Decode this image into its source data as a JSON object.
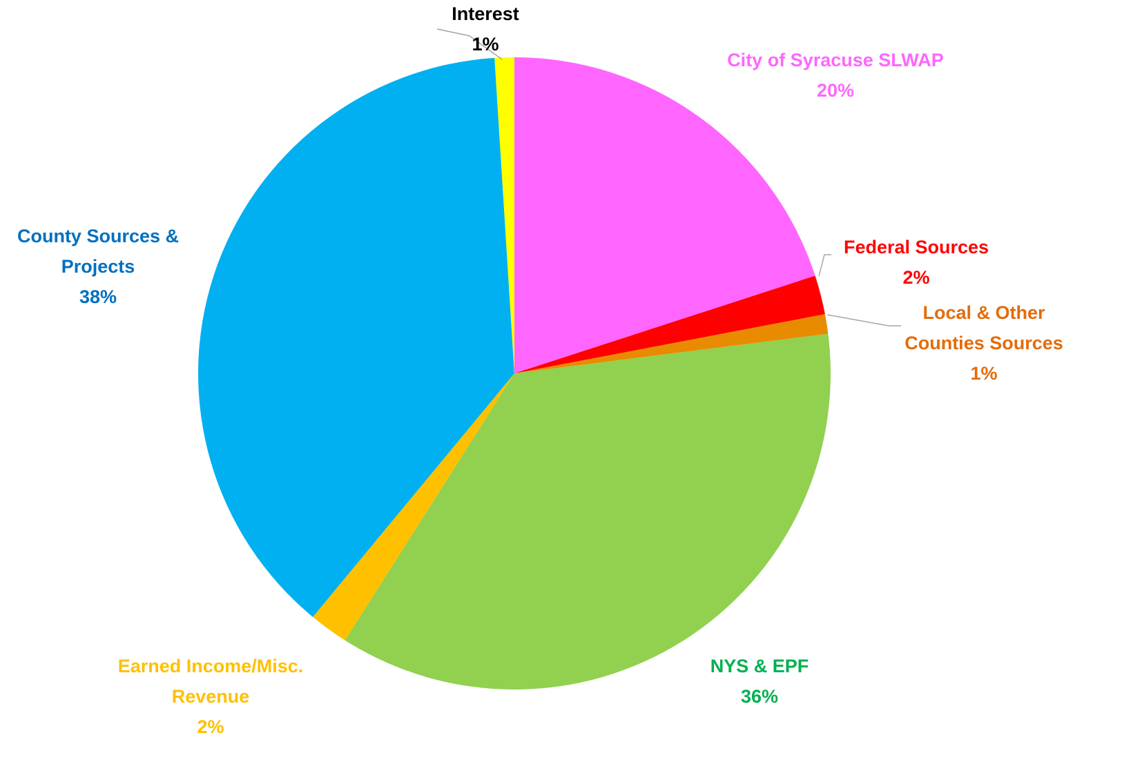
{
  "chart_data": {
    "type": "pie",
    "categories": [
      "City of Syracuse SLWAP",
      "Federal Sources",
      "Local & Other Counties Sources",
      "NYS & EPF",
      "Earned Income/Misc. Revenue",
      "County Sources & Projects",
      "Interest"
    ],
    "values": [
      20,
      2,
      1,
      36,
      2,
      38,
      1
    ],
    "value_labels": [
      "20%",
      "2%",
      "1%",
      "36%",
      "2%",
      "38%",
      "1%"
    ],
    "colors": [
      "#ff66ff",
      "#ff0000",
      "#e98b00",
      "#92d050",
      "#ffc000",
      "#00b0f0",
      "#ffff00"
    ],
    "label_colors": [
      "#ff66ff",
      "#ff0000",
      "#e46c0a",
      "#00b050",
      "#ffc000",
      "#0070c0",
      "#000000"
    ]
  }
}
